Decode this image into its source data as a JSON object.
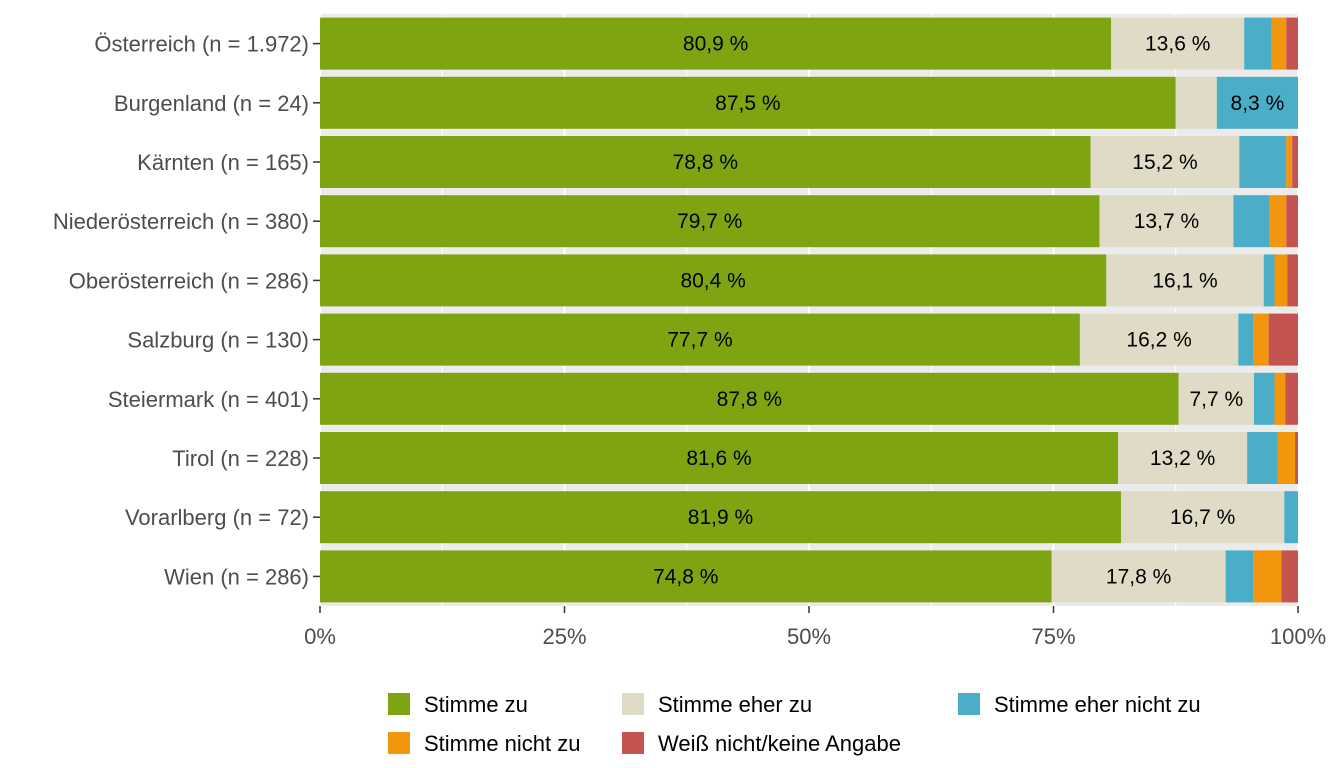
{
  "chart_data": {
    "type": "bar",
    "orientation": "horizontal",
    "stacked": true,
    "normalized": true,
    "title": "",
    "xlabel": "",
    "ylabel": "",
    "xlim": [
      0,
      100
    ],
    "x_ticks": [
      "0%",
      "25%",
      "50%",
      "75%",
      "100%"
    ],
    "x_tick_values": [
      0,
      25,
      50,
      75,
      100
    ],
    "grid": true,
    "legend_position": "bottom",
    "categories": [
      "Österreich (n = 1.972)",
      "Burgenland (n = 24)",
      "Kärnten (n = 165)",
      "Niederösterreich (n = 380)",
      "Oberösterreich (n = 286)",
      "Salzburg (n = 130)",
      "Steiermark (n = 401)",
      "Tirol (n = 228)",
      "Vorarlberg (n = 72)",
      "Wien (n = 286)"
    ],
    "series": [
      {
        "name": "Stimme zu",
        "color": "#7ea412",
        "values": [
          80.9,
          87.5,
          78.8,
          79.7,
          80.4,
          77.7,
          87.8,
          81.6,
          81.9,
          74.8
        ],
        "labels": [
          "80,9 %",
          "87,5 %",
          "78,8 %",
          "79,7 %",
          "80,4 %",
          "77,7 %",
          "87,8 %",
          "81,6 %",
          "81,9 %",
          "74,8 %"
        ]
      },
      {
        "name": "Stimme eher zu",
        "color": "#dfdbc6",
        "values": [
          13.6,
          4.2,
          15.2,
          13.7,
          16.1,
          16.2,
          7.7,
          13.2,
          16.7,
          17.8
        ],
        "labels": [
          "13,6 %",
          "",
          "15,2 %",
          "13,7 %",
          "16,1 %",
          "16,2 %",
          "7,7 %",
          "13,2 %",
          "16,7 %",
          "17,8 %"
        ]
      },
      {
        "name": "Stimme eher nicht zu",
        "color": "#4baec8",
        "values": [
          2.8,
          8.3,
          4.8,
          3.7,
          1.1,
          1.5,
          2.1,
          3.1,
          1.4,
          2.8
        ],
        "labels": [
          "",
          "8,3 %",
          "",
          "",
          "",
          "",
          "",
          "",
          "",
          ""
        ]
      },
      {
        "name": "Stimme nicht zu",
        "color": "#f3960e",
        "values": [
          1.5,
          0,
          0.6,
          1.7,
          1.3,
          1.6,
          1.1,
          1.8,
          0,
          2.9
        ],
        "labels": [
          "",
          "",
          "",
          "",
          "",
          "",
          "",
          "",
          "",
          ""
        ]
      },
      {
        "name": "Weiß nicht/keine Angabe",
        "color": "#c55350",
        "values": [
          1.2,
          0,
          0.6,
          1.2,
          1.1,
          3.0,
          1.3,
          0.3,
          0,
          1.7
        ],
        "labels": [
          "",
          "",
          "",
          "",
          "",
          "",
          "",
          "",
          "",
          ""
        ]
      }
    ]
  }
}
